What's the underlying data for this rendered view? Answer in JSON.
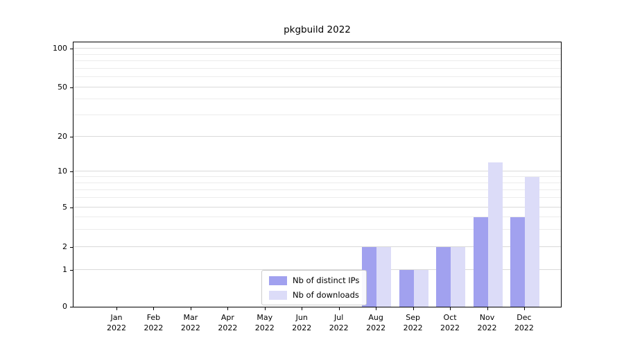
{
  "title": "pkgbuild 2022",
  "chart_data": {
    "type": "bar",
    "title": "pkgbuild 2022",
    "yscale": "symlog",
    "grid": "horizontal",
    "legend_position": "lower center inside plot",
    "ylim": [
      0,
      110
    ],
    "y_ticks": [
      0,
      1,
      2,
      5,
      10,
      20,
      50,
      100
    ],
    "y_minor_ticks": [
      3,
      4,
      6,
      7,
      8,
      9,
      30,
      40,
      60,
      70,
      80,
      90
    ],
    "categories": [
      "Jan\n2022",
      "Feb\n2022",
      "Mar\n2022",
      "Apr\n2022",
      "May\n2022",
      "Jun\n2022",
      "Jul\n2022",
      "Aug\n2022",
      "Sep\n2022",
      "Oct\n2022",
      "Nov\n2022",
      "Dec\n2022"
    ],
    "series": [
      {
        "name": "Nb of distinct IPs",
        "color": "#a1a1ef",
        "values": [
          0,
          0,
          0,
          0,
          0,
          0,
          0,
          2,
          1,
          2,
          4,
          4
        ]
      },
      {
        "name": "Nb of downloads",
        "color": "#dcdcf8",
        "values": [
          0,
          0,
          0,
          0,
          0,
          0,
          0,
          2,
          1,
          2,
          12,
          9
        ]
      }
    ]
  }
}
